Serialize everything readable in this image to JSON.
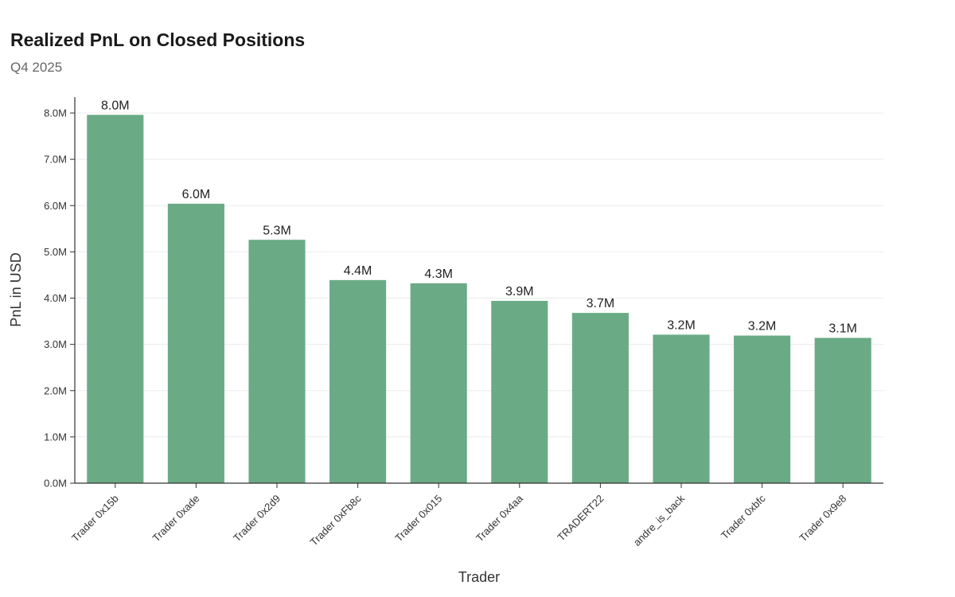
{
  "chart_data": {
    "type": "bar",
    "title": "Realized PnL on Closed Positions",
    "subtitle": "Q4 2025",
    "xlabel": "Trader",
    "ylabel": "PnL in USD",
    "ylim": [
      0,
      8000000
    ],
    "yticks": [
      {
        "value": 0,
        "label": "0.0M"
      },
      {
        "value": 1000000,
        "label": "1.0M"
      },
      {
        "value": 2000000,
        "label": "2.0M"
      },
      {
        "value": 3000000,
        "label": "3.0M"
      },
      {
        "value": 4000000,
        "label": "4.0M"
      },
      {
        "value": 5000000,
        "label": "5.0M"
      },
      {
        "value": 6000000,
        "label": "6.0M"
      },
      {
        "value": 7000000,
        "label": "7.0M"
      },
      {
        "value": 8000000,
        "label": "8.0M"
      }
    ],
    "grid": true,
    "bar_color": "#6aab85",
    "categories": [
      "Trader 0x15b",
      "Trader 0xade",
      "Trader 0x2d9",
      "Trader 0xFb8c",
      "Trader 0x015",
      "Trader 0x4aa",
      "TRADERT22",
      "andre_is_back",
      "Trader 0xbfc",
      "Trader 0x9e8"
    ],
    "values": [
      7960000,
      6040000,
      5260000,
      4390000,
      4320000,
      3940000,
      3680000,
      3210000,
      3190000,
      3140000
    ],
    "data_labels": [
      "8.0M",
      "6.0M",
      "5.3M",
      "4.4M",
      "4.3M",
      "3.9M",
      "3.7M",
      "3.2M",
      "3.2M",
      "3.1M"
    ]
  }
}
